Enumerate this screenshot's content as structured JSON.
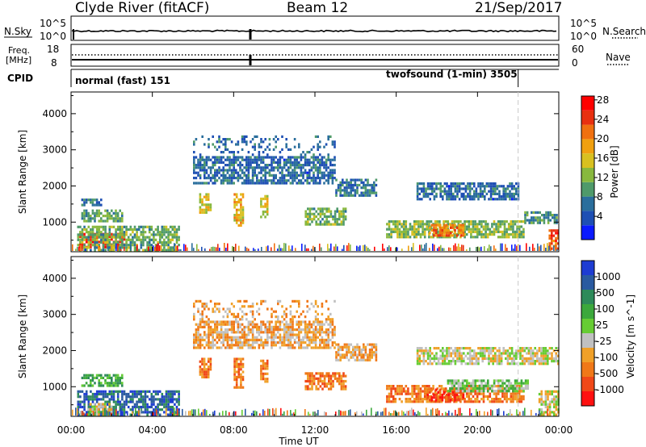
{
  "header": {
    "station": "Clyde River (fitACF)",
    "beam": "Beam 12",
    "date": "21/Sep/2017"
  },
  "nsky_panel": {
    "left_label": "N.Sky",
    "left_ticks": [
      "10^5",
      "10^0"
    ],
    "right_ticks": [
      "10^5",
      "10^0"
    ],
    "right_label": "N.Search"
  },
  "freq_panel": {
    "left_label_1": "Freq.",
    "left_label_2": "[MHz]",
    "left_ticks": [
      "18",
      "8"
    ],
    "right_ticks": [
      "60",
      "0"
    ],
    "right_label": "Nave"
  },
  "cpid_panel": {
    "label": "CPID",
    "mode_1": "normal (fast) 151",
    "mode_2": "twofsound (1-min) 3505",
    "mode_2_start_hour": 22.0
  },
  "chart_data": [
    {
      "type": "heatmap",
      "name": "power",
      "ylabel": "Slant Range [km]",
      "xlabel": "",
      "x_range_hours": [
        0,
        24
      ],
      "y_range_km": [
        180,
        4600
      ],
      "yticks": [
        1000,
        2000,
        3000,
        4000
      ],
      "colorbar": {
        "label": "Power [dB]",
        "ticks": [
          "4",
          "8",
          "12",
          "16",
          "20",
          "24",
          "28"
        ],
        "colors": [
          "#0a1aff",
          "#1e4fb4",
          "#2a6e9c",
          "#4f9a6a",
          "#88b83e",
          "#d8c020",
          "#f0a010",
          "#f07010",
          "#e83010",
          "#ff0000"
        ]
      },
      "bands": [
        {
          "t0": 0.4,
          "t1": 2.6,
          "r0": 300,
          "r1": 700,
          "v": 28
        },
        {
          "t0": 0.3,
          "t1": 5.3,
          "r0": 200,
          "r1": 900,
          "v": 14
        },
        {
          "t0": 0.5,
          "t1": 2.5,
          "r0": 1000,
          "r1": 1350,
          "v": 13
        },
        {
          "t0": 0.5,
          "t1": 1.5,
          "r0": 1450,
          "r1": 1650,
          "v": 10
        },
        {
          "t0": 6.3,
          "t1": 6.9,
          "r0": 1250,
          "r1": 1800,
          "v": 18
        },
        {
          "t0": 8.0,
          "t1": 8.5,
          "r0": 900,
          "r1": 1800,
          "v": 20
        },
        {
          "t0": 9.3,
          "t1": 9.7,
          "r0": 1150,
          "r1": 1750,
          "v": 18
        },
        {
          "t0": 11.5,
          "t1": 13.5,
          "r0": 950,
          "r1": 1400,
          "v": 14
        },
        {
          "t0": 13.0,
          "t1": 15.0,
          "r0": 1700,
          "r1": 2200,
          "v": 10
        },
        {
          "t0": 15.5,
          "t1": 22.3,
          "r0": 600,
          "r1": 1050,
          "v": 15
        },
        {
          "t0": 17.5,
          "t1": 19.3,
          "r0": 600,
          "r1": 950,
          "v": 24
        },
        {
          "t0": 22.3,
          "t1": 23.9,
          "r0": 950,
          "r1": 1300,
          "v": 12
        },
        {
          "t0": 23.5,
          "t1": 24.0,
          "r0": 250,
          "r1": 800,
          "v": 26
        },
        {
          "t0": 17.0,
          "t1": 22.0,
          "r0": 1600,
          "r1": 2100,
          "v": 9
        },
        {
          "t0": 6.0,
          "t1": 13.0,
          "r0": 2100,
          "r1": 3400,
          "v": 9
        }
      ]
    },
    {
      "type": "heatmap",
      "name": "velocity",
      "ylabel": "Slant Range [km]",
      "xlabel": "Time UT",
      "x_range_hours": [
        0,
        24
      ],
      "y_range_km": [
        180,
        4600
      ],
      "yticks": [
        1000,
        2000,
        3000,
        4000
      ],
      "xticks": [
        "00:00",
        "04:00",
        "08:00",
        "12:00",
        "16:00",
        "20:00",
        "00:00"
      ],
      "colorbar": {
        "label": "Velocity [m s^-1]",
        "ticks": [
          "1000",
          "500",
          "100",
          "25",
          "-25",
          "-100",
          "-500",
          "-1000"
        ],
        "colors": [
          "#1e3cd2",
          "#2a5aa0",
          "#2e8a5a",
          "#3ca83c",
          "#66cc33",
          "#c0c0c0",
          "#f0a028",
          "#f07818",
          "#f04818",
          "#ff1010"
        ]
      },
      "bands": [
        {
          "t0": 0.3,
          "t1": 5.3,
          "r0": 200,
          "r1": 900,
          "v": 1
        },
        {
          "t0": 0.8,
          "t1": 2.0,
          "r0": 250,
          "r1": 550,
          "v": 5
        },
        {
          "t0": 0.5,
          "t1": 2.5,
          "r0": 1000,
          "r1": 1350,
          "v": 3
        },
        {
          "t0": 6.3,
          "t1": 6.9,
          "r0": 1250,
          "r1": 1800,
          "v": 7
        },
        {
          "t0": 8.0,
          "t1": 8.5,
          "r0": 900,
          "r1": 1800,
          "v": 7
        },
        {
          "t0": 9.3,
          "t1": 9.7,
          "r0": 1150,
          "r1": 1750,
          "v": 7
        },
        {
          "t0": 11.5,
          "t1": 13.5,
          "r0": 950,
          "r1": 1400,
          "v": 7
        },
        {
          "t0": 15.5,
          "t1": 22.3,
          "r0": 600,
          "r1": 1050,
          "v": 7
        },
        {
          "t0": 17.5,
          "t1": 19.3,
          "r0": 650,
          "r1": 950,
          "v": 8
        },
        {
          "t0": 18.5,
          "t1": 22.5,
          "r0": 850,
          "r1": 1200,
          "v": 4
        },
        {
          "t0": 17.0,
          "t1": 24.0,
          "r0": 1600,
          "r1": 2100,
          "v": 5
        },
        {
          "t0": 23.0,
          "t1": 24.0,
          "r0": 200,
          "r1": 900,
          "v": 5
        },
        {
          "t0": 13.0,
          "t1": 15.0,
          "r0": 1700,
          "r1": 2200,
          "v": 6
        },
        {
          "t0": 6.0,
          "t1": 13.0,
          "r0": 2100,
          "r1": 3400,
          "v": 6
        }
      ]
    }
  ]
}
